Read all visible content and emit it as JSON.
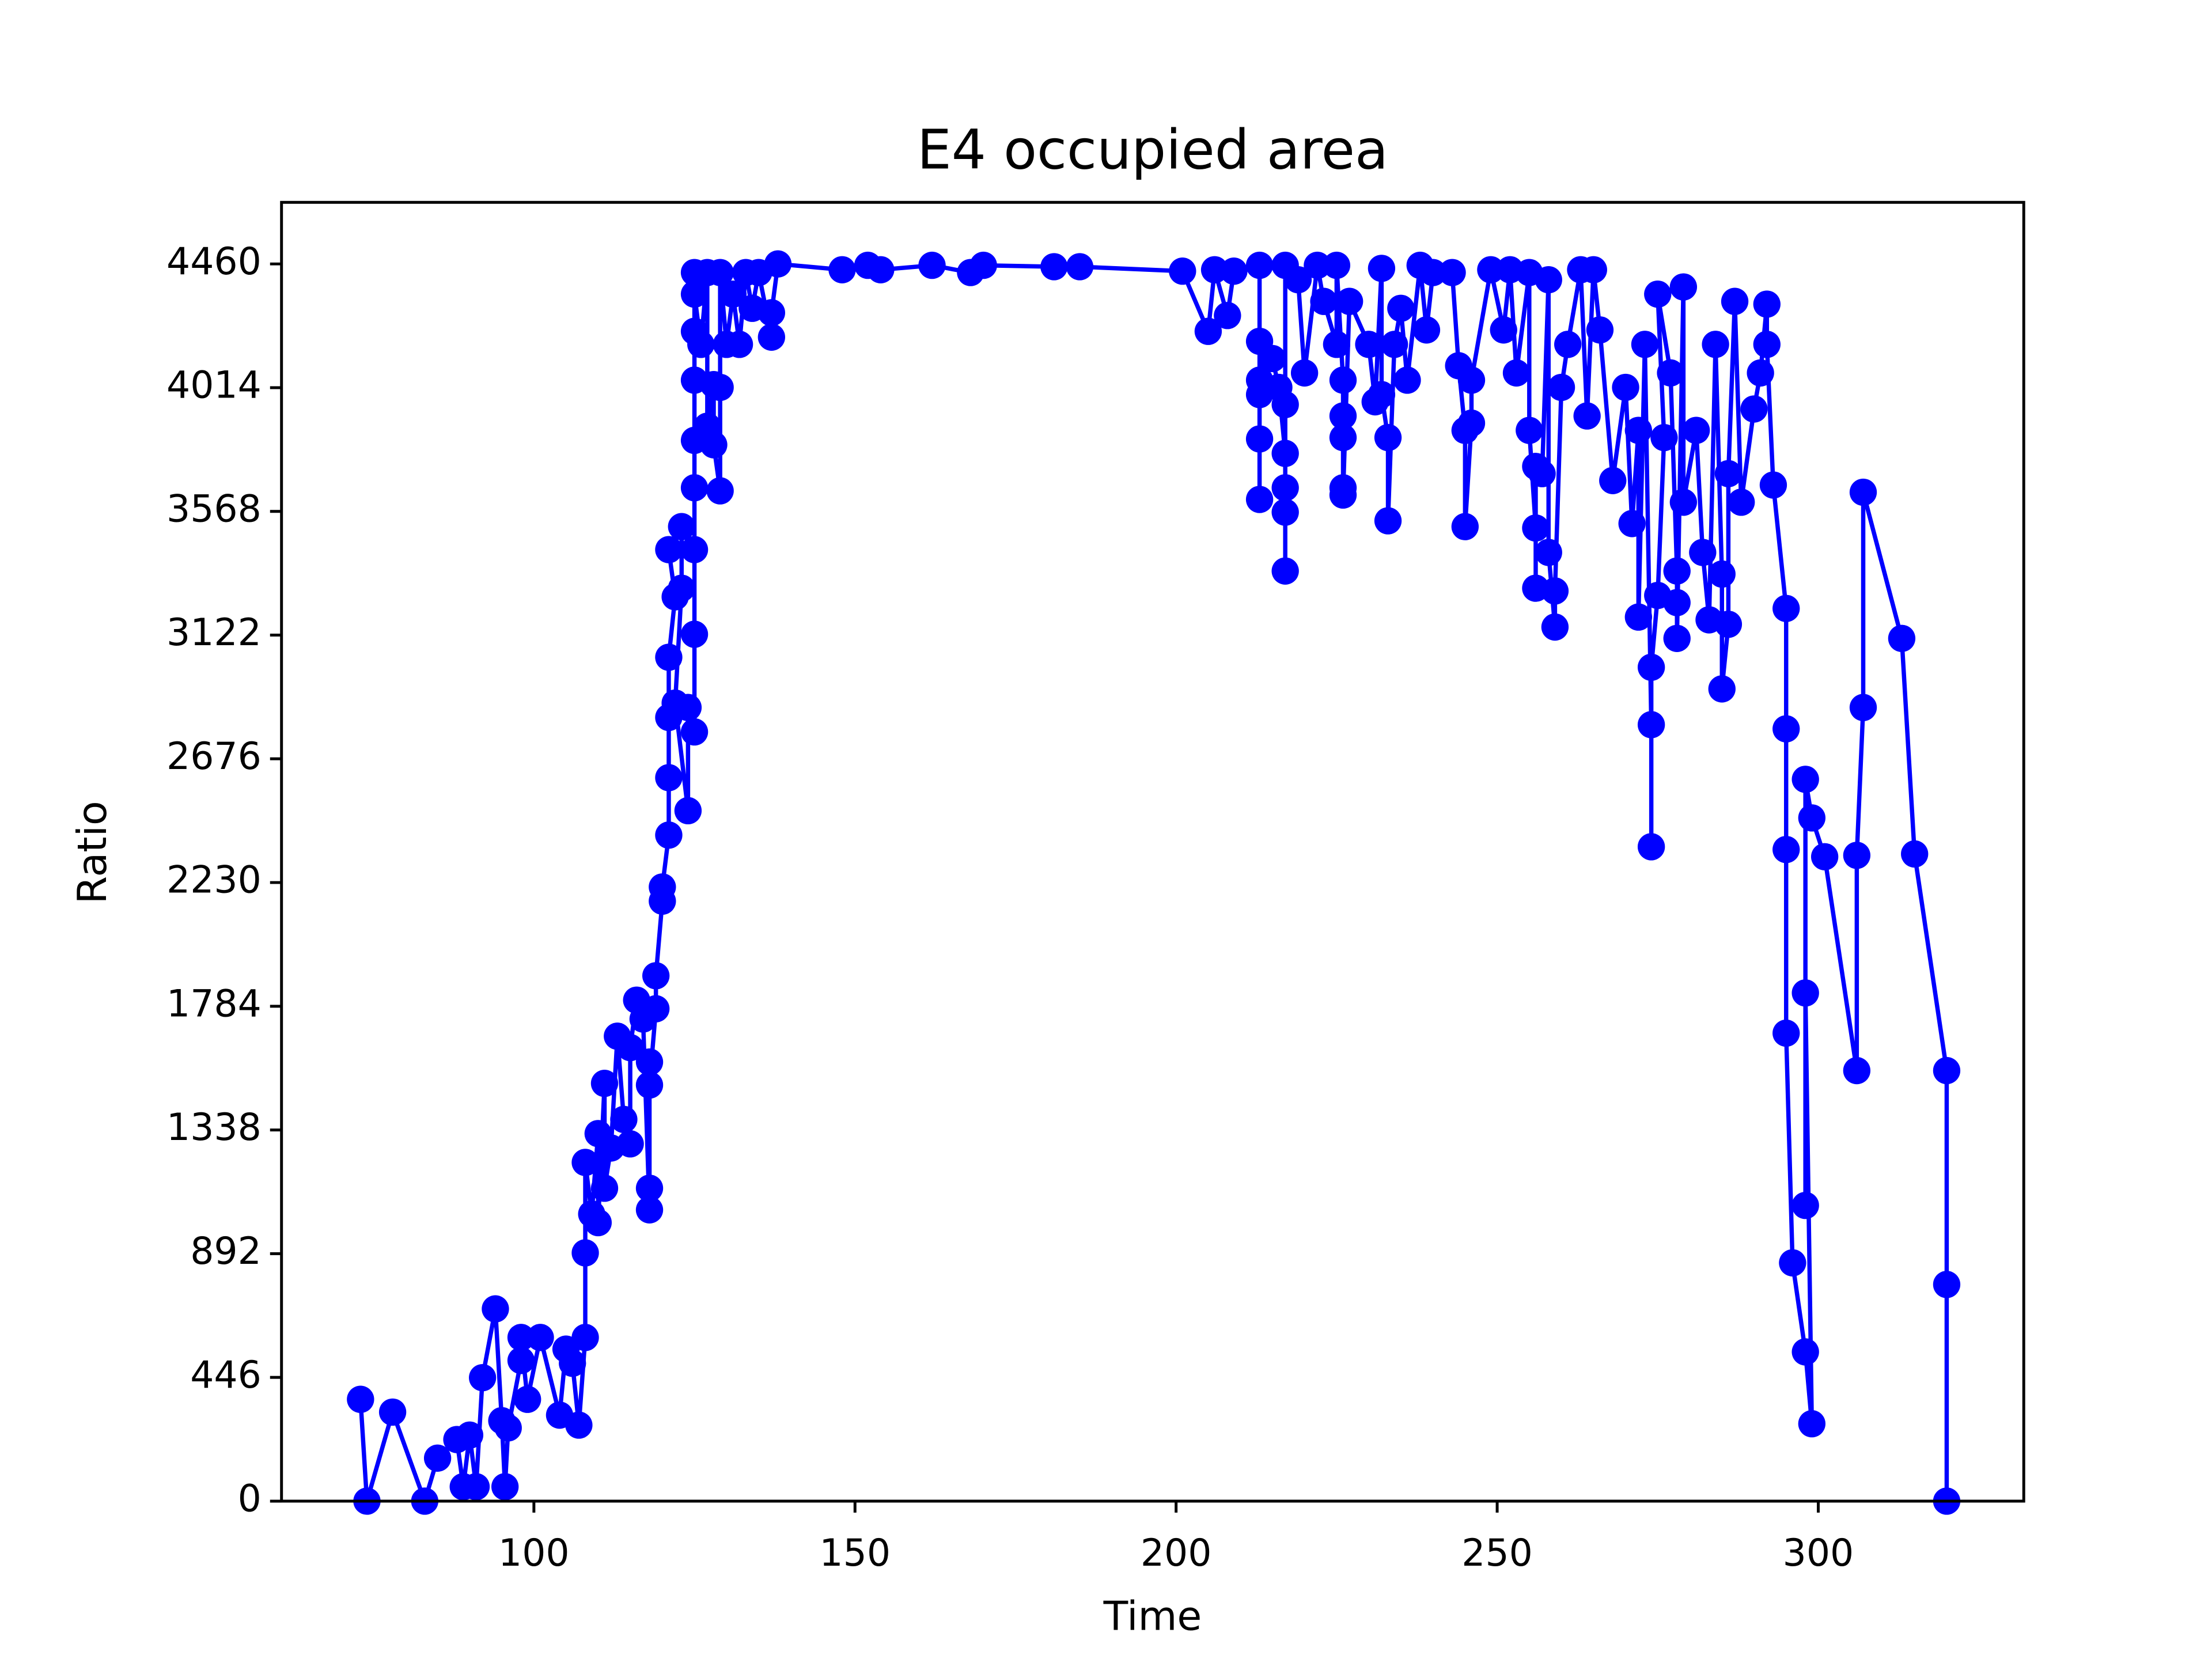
{
  "chart_data": {
    "type": "line",
    "title": "E4 occupied area",
    "x_label": "Time",
    "y_label": "Ratio",
    "color": "#0000ff",
    "xlim": [
      60.7,
      332
    ],
    "ylim": [
      0,
      4682
    ],
    "xticks": [
      100,
      150,
      200,
      250,
      300
    ],
    "yticks": [
      0,
      446,
      892,
      1338,
      1784,
      2230,
      2676,
      3122,
      3568,
      4014,
      4460
    ],
    "x": [
      73,
      74,
      78,
      83,
      85,
      88,
      89,
      90,
      91,
      92,
      94,
      95,
      95.5,
      96,
      98,
      98,
      99,
      101,
      104,
      105,
      106,
      107,
      108,
      108,
      108,
      109,
      110,
      110,
      111,
      111,
      112,
      113,
      114,
      115,
      115,
      116,
      117,
      118,
      118,
      118,
      118,
      119,
      119,
      120,
      120,
      121,
      121,
      121,
      121,
      122,
      121,
      123,
      123,
      122,
      124,
      124,
      125,
      125,
      125,
      125,
      125,
      125,
      125,
      125,
      125,
      126,
      127,
      127,
      128,
      128,
      129,
      129,
      129,
      130,
      131,
      132,
      133,
      134,
      135,
      137,
      137,
      138,
      148,
      152,
      154,
      162,
      168,
      170,
      181,
      185,
      201,
      205,
      206,
      208,
      209,
      213,
      213,
      213,
      213,
      213,
      213,
      215,
      216,
      217,
      217,
      217,
      217,
      217,
      217,
      219,
      220,
      222,
      223,
      225,
      225,
      226,
      226,
      226,
      226,
      226,
      227,
      230,
      231,
      232,
      232,
      233,
      233,
      234,
      235,
      236,
      238,
      239,
      240,
      243,
      244,
      245,
      245,
      246,
      246,
      249,
      251,
      252,
      253,
      255,
      255,
      256,
      256,
      256,
      257,
      258,
      258,
      259,
      259,
      260,
      261,
      263,
      264,
      265,
      266,
      268,
      270,
      271,
      272,
      272,
      273,
      274,
      274,
      274,
      275,
      276,
      275,
      277,
      278,
      278,
      278,
      279,
      279,
      281,
      282,
      283,
      284,
      285,
      285,
      286,
      286,
      287,
      288,
      290,
      291,
      292,
      292,
      293,
      295,
      295,
      295,
      295,
      296,
      298,
      299,
      298,
      298,
      298,
      299,
      301,
      306,
      306,
      307,
      307,
      313,
      315,
      320,
      320,
      320
    ],
    "values": [
      367,
      0,
      321,
      0,
      155,
      222,
      52,
      238,
      52,
      445,
      693,
      290,
      52,
      264,
      507,
      590,
      367,
      590,
      310,
      548,
      497,
      274,
      590,
      895,
      1221,
      1035,
      1325,
      1004,
      1506,
      1128,
      1273,
      1676,
      1376,
      1288,
      1635,
      1806,
      1738,
      1050,
      1128,
      1583,
      1500,
      1775,
      1894,
      2163,
      2214,
      2401,
      2608,
      2825,
      3042,
      3260,
      3430,
      3513,
      3291,
      2877,
      2489,
      2861,
      2773,
      3125,
      3430,
      3653,
      3824,
      4041,
      4217,
      4429,
      4351,
      4170,
      4429,
      3875,
      4025,
      3808,
      3642,
      4015,
      4429,
      4170,
      4351,
      4170,
      4429,
      4300,
      4429,
      4196,
      4284,
      4460,
      4439,
      4455,
      4439,
      4455,
      4429,
      4455,
      4450,
      4450,
      4434,
      4217,
      4439,
      4274,
      4434,
      4455,
      4181,
      3829,
      3611,
      4041,
      3989,
      4119,
      4015,
      3777,
      3565,
      3353,
      3653,
      3953,
      4455,
      4403,
      4067,
      4455,
      4325,
      4170,
      4455,
      4041,
      3912,
      3834,
      3653,
      3627,
      4325,
      4170,
      3963,
      4444,
      3989,
      3834,
      3534,
      4170,
      4300,
      4041,
      4455,
      4222,
      4429,
      4429,
      4093,
      3860,
      3513,
      3886,
      4041,
      4439,
      4222,
      4439,
      4067,
      4429,
      3860,
      3508,
      3291,
      3730,
      3704,
      4403,
      3420,
      3151,
      3281,
      4015,
      4170,
      4439,
      3912,
      4439,
      4222,
      3679,
      4015,
      3524,
      3860,
      3187,
      4170,
      2799,
      2359,
      3006,
      3265,
      3834,
      4351,
      4067,
      3353,
      3239,
      3110,
      4377,
      3601,
      3860,
      3420,
      3177,
      4170,
      3342,
      2928,
      3161,
      3704,
      4325,
      3601,
      3937,
      4067,
      4315,
      4170,
      3663,
      3218,
      2784,
      2349,
      1687,
      859,
      538,
      279,
      1832,
      1066,
      2602,
      2463,
      2323,
      1552,
      2328,
      2861,
      3637,
      3110,
      2333,
      1552,
      781,
      0
    ]
  }
}
